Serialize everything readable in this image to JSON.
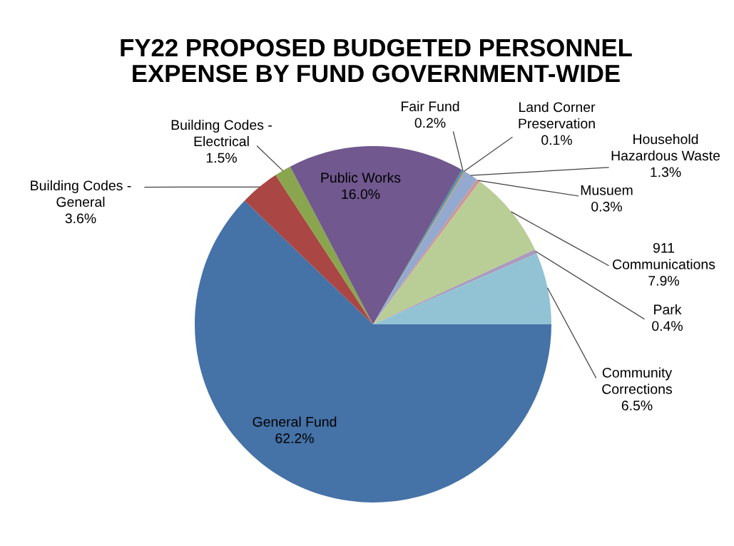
{
  "chart_data": {
    "type": "pie",
    "title": "FY22 PROPOSED BUDGETED PERSONNEL\nEXPENSE BY FUND GOVERNMENT-WIDE",
    "categories": [
      "General Fund",
      "Building Codes -\nGeneral",
      "Building Codes -\nElectrical",
      "Public Works",
      "Fair Fund",
      "Land Corner\nPreservation",
      "Household\nHazardous Waste",
      "Musuem",
      "911\nCommunications",
      "Park",
      "Community\nCorrections"
    ],
    "values": [
      62.2,
      3.6,
      1.5,
      16.0,
      0.2,
      0.1,
      1.3,
      0.3,
      7.9,
      0.4,
      6.5
    ],
    "colors": [
      "#4572a7",
      "#aa4643",
      "#89a54e",
      "#71588f",
      "#4198af",
      "#db843d",
      "#93a9cf",
      "#d19392",
      "#b9cd96",
      "#a99bbd",
      "#92c3d4"
    ],
    "value_labels": [
      "62.2%",
      "3.6%",
      "1.5%",
      "16.0%",
      "0.2%",
      "0.1%",
      "1.3%",
      "0.3%",
      "7.9%",
      "0.4%",
      "6.5%"
    ],
    "legend": false
  }
}
